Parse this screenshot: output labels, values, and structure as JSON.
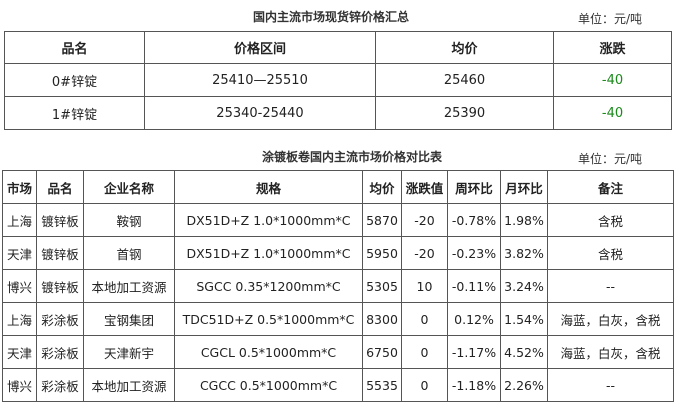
{
  "summary": {
    "title": "国内主流市场现货锌价格汇总",
    "unit": "单位：元/吨",
    "headers": [
      "品名",
      "价格区间",
      "均价",
      "涨跌"
    ],
    "rows": [
      [
        "0#锌锭",
        "25410—25510",
        "25460",
        "-40"
      ],
      [
        "1#锌锭",
        "25340-25440",
        "25390",
        "-40"
      ]
    ],
    "change_color": "#1a8a1a"
  },
  "galvanized": {
    "title": "涂镀板卷国内主流市场价格对比表",
    "unit": "单位：元/吨",
    "headers": [
      "市场",
      "品名",
      "企业名称",
      "规格",
      "均价",
      "涨跌值",
      "周环比",
      "月环比",
      "备注"
    ],
    "rows": [
      [
        "上海",
        "镀锌板",
        "鞍钢",
        "DX51D+Z 1.0*1000mm*C",
        "5870",
        "-20",
        "-0.78%",
        "1.98%",
        "含税"
      ],
      [
        "天津",
        "镀锌板",
        "首钢",
        "DX51D+Z 1.0*1000mm*C",
        "5950",
        "-20",
        "-0.23%",
        "3.82%",
        "含税"
      ],
      [
        "博兴",
        "镀锌板",
        "本地加工资源",
        "SGCC 0.35*1200mm*C",
        "5305",
        "10",
        "-0.11%",
        "3.24%",
        "--"
      ],
      [
        "上海",
        "彩涂板",
        "宝钢集团",
        "TDC51D+Z 0.5*1000mm*C",
        "8300",
        "0",
        "0.12%",
        "1.54%",
        "海蓝，白灰，含税"
      ],
      [
        "天津",
        "彩涂板",
        "天津新宇",
        "CGCL 0.5*1000mm*C",
        "6750",
        "0",
        "-1.17%",
        "4.52%",
        "海蓝，白灰，含税"
      ],
      [
        "博兴",
        "彩涂板",
        "本地加工资源",
        "CGCC 0.5*1000mm*C",
        "5535",
        "0",
        "-1.18%",
        "2.26%",
        "--"
      ]
    ]
  }
}
